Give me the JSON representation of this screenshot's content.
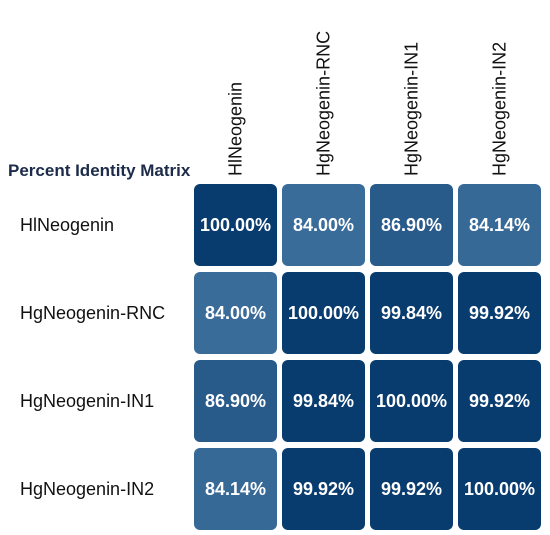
{
  "chart_data": {
    "type": "heatmap",
    "title": "Percent Identity Matrix",
    "rows": [
      "HlNeogenin",
      "HgNeogenin-RNC",
      "HgNeogenin-IN1",
      "HgNeogenin-IN2"
    ],
    "columns": [
      "HlNeogenin",
      "HgNeogenin-RNC",
      "HgNeogenin-IN1",
      "HgNeogenin-IN2"
    ],
    "values": [
      [
        100.0,
        84.0,
        86.9,
        84.14
      ],
      [
        84.0,
        100.0,
        99.84,
        99.92
      ],
      [
        86.9,
        99.84,
        100.0,
        99.92
      ],
      [
        84.14,
        99.92,
        99.92,
        100.0
      ]
    ],
    "value_labels": [
      [
        "100.00%",
        "84.00%",
        "86.90%",
        "84.14%"
      ],
      [
        "84.00%",
        "100.00%",
        "99.84%",
        "99.92%"
      ],
      [
        "86.90%",
        "99.84%",
        "100.00%",
        "99.92%"
      ],
      [
        "84.14%",
        "99.92%",
        "99.92%",
        "100.00%"
      ]
    ],
    "color_scale": {
      "low_color": "#3a6c9a",
      "high_color": "#083b6e",
      "text_color": "#ffffff"
    },
    "legend": "none"
  }
}
